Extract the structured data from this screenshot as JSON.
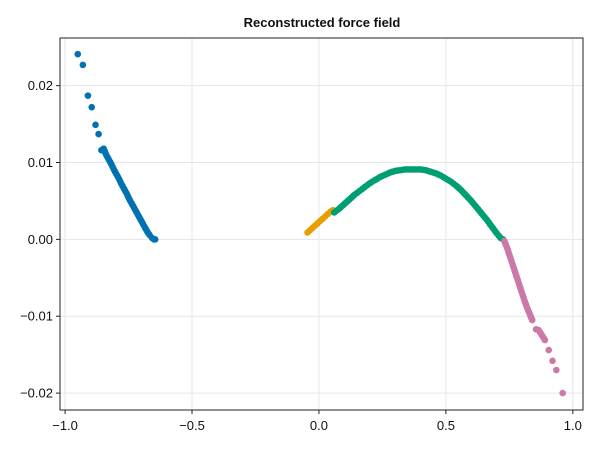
{
  "chart_data": {
    "type": "scatter",
    "title": "Reconstructed force field",
    "xlabel": "",
    "ylabel": "",
    "xlim": [
      -1.02,
      1.04
    ],
    "ylim": [
      -0.0222,
      0.0262
    ],
    "xticks": [
      -1.0,
      -0.5,
      0.0,
      0.5,
      1.0
    ],
    "xtick_labels": [
      "−1.0",
      "−0.5",
      "0.0",
      "0.5",
      "1.0"
    ],
    "yticks": [
      -0.02,
      -0.01,
      0.0,
      0.01,
      0.02
    ],
    "ytick_labels": [
      "−0.02",
      "−0.01",
      "0.00",
      "0.01",
      "0.02"
    ],
    "grid": true,
    "legend": "none",
    "series": [
      {
        "color": "#0072b2",
        "points": [
          [
            -0.95,
            0.0241
          ],
          [
            -0.93,
            0.0227
          ],
          [
            -0.91,
            0.0187
          ],
          [
            -0.895,
            0.0172
          ],
          [
            -0.88,
            0.0149
          ],
          [
            -0.868,
            0.0137
          ],
          [
            -0.857,
            0.0116
          ],
          [
            -0.848,
            0.0118
          ],
          [
            -0.838,
            0.011
          ],
          [
            -0.828,
            0.0104
          ],
          [
            -0.818,
            0.0098
          ],
          [
            -0.808,
            0.0091
          ],
          [
            -0.798,
            0.0085
          ],
          [
            -0.788,
            0.0079
          ],
          [
            -0.778,
            0.0072
          ],
          [
            -0.768,
            0.0066
          ],
          [
            -0.758,
            0.006
          ],
          [
            -0.748,
            0.0053
          ],
          [
            -0.738,
            0.0047
          ],
          [
            -0.728,
            0.0041
          ],
          [
            -0.718,
            0.0035
          ],
          [
            -0.708,
            0.0029
          ],
          [
            -0.698,
            0.0023
          ],
          [
            -0.688,
            0.0017
          ],
          [
            -0.678,
            0.0011
          ],
          [
            -0.668,
            0.0006
          ],
          [
            -0.658,
            0.0002
          ],
          [
            -0.65,
            0.0
          ],
          [
            -0.645,
            0.0
          ]
        ]
      },
      {
        "color": "#e69f00",
        "points": [
          [
            -0.045,
            0.0009
          ],
          [
            -0.035,
            0.0012
          ],
          [
            -0.025,
            0.0015
          ],
          [
            -0.015,
            0.0018
          ],
          [
            -0.005,
            0.0021
          ],
          [
            0.005,
            0.0024
          ],
          [
            0.015,
            0.0027
          ],
          [
            0.025,
            0.003
          ],
          [
            0.035,
            0.0033
          ],
          [
            0.045,
            0.0036
          ],
          [
            0.055,
            0.0038
          ]
        ]
      },
      {
        "color": "#009e73",
        "points": [
          [
            0.06,
            0.0035
          ],
          [
            0.08,
            0.004
          ],
          [
            0.1,
            0.0046
          ],
          [
            0.12,
            0.0052
          ],
          [
            0.14,
            0.0058
          ],
          [
            0.16,
            0.0063
          ],
          [
            0.18,
            0.0068
          ],
          [
            0.2,
            0.0073
          ],
          [
            0.22,
            0.0077
          ],
          [
            0.24,
            0.0081
          ],
          [
            0.26,
            0.0084
          ],
          [
            0.28,
            0.0087
          ],
          [
            0.3,
            0.0089
          ],
          [
            0.32,
            0.009
          ],
          [
            0.34,
            0.0091
          ],
          [
            0.36,
            0.0091
          ],
          [
            0.38,
            0.0091
          ],
          [
            0.4,
            0.0091
          ],
          [
            0.42,
            0.009
          ],
          [
            0.44,
            0.0088
          ],
          [
            0.46,
            0.0086
          ],
          [
            0.48,
            0.0083
          ],
          [
            0.5,
            0.0079
          ],
          [
            0.52,
            0.0075
          ],
          [
            0.54,
            0.007
          ],
          [
            0.56,
            0.0064
          ],
          [
            0.58,
            0.0057
          ],
          [
            0.6,
            0.005
          ],
          [
            0.62,
            0.0042
          ],
          [
            0.64,
            0.0034
          ],
          [
            0.66,
            0.0026
          ],
          [
            0.68,
            0.0017
          ],
          [
            0.7,
            0.0008
          ],
          [
            0.715,
            0.0002
          ],
          [
            0.725,
            0.0
          ]
        ]
      },
      {
        "color": "#cc79a7",
        "points": [
          [
            0.73,
            -0.0002
          ],
          [
            0.74,
            -0.001
          ],
          [
            0.75,
            -0.002
          ],
          [
            0.76,
            -0.003
          ],
          [
            0.77,
            -0.004
          ],
          [
            0.78,
            -0.005
          ],
          [
            0.79,
            -0.006
          ],
          [
            0.8,
            -0.007
          ],
          [
            0.81,
            -0.008
          ],
          [
            0.82,
            -0.0089
          ],
          [
            0.83,
            -0.0097
          ],
          [
            0.84,
            -0.0105
          ],
          [
            0.855,
            -0.0117
          ],
          [
            0.865,
            -0.0118
          ],
          [
            0.875,
            -0.0123
          ],
          [
            0.89,
            -0.0131
          ],
          [
            0.905,
            -0.0144
          ],
          [
            0.92,
            -0.0158
          ],
          [
            0.935,
            -0.017
          ],
          [
            0.96,
            -0.02
          ]
        ]
      }
    ]
  }
}
